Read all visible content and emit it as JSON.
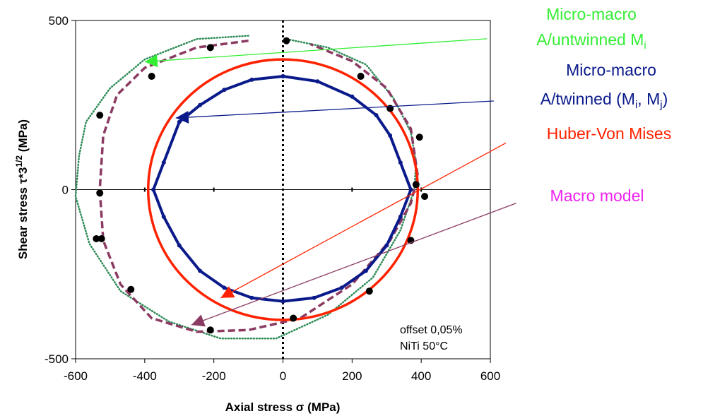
{
  "chart_data": {
    "type": "scatter",
    "xlabel": "Axial stress σ (MPa)",
    "ylabel": "Shear stress τ*3^(1/2) (MPa)",
    "ylabel_parts": {
      "main": "Shear stress τ*3",
      "sup": "1/2",
      "end": " (MPa)"
    },
    "xlim": [
      -600,
      600
    ],
    "ylim": [
      -500,
      500
    ],
    "xticks": [
      -600,
      -400,
      -200,
      0,
      200,
      400,
      600
    ],
    "yticks": [
      -500,
      0,
      500
    ],
    "notes": [
      "offset 0,05%",
      "NiTi 50°C"
    ],
    "experimental_points": {
      "name": "",
      "color": "#000000",
      "x": [
        10,
        -210,
        -380,
        -530,
        -530,
        -540,
        -525,
        -440,
        -210,
        30,
        250,
        370,
        385,
        410,
        395,
        310,
        225
      ],
      "y": [
        440,
        420,
        335,
        220,
        -10,
        -145,
        -145,
        -295,
        -415,
        -380,
        -300,
        -150,
        15,
        -20,
        155,
        240,
        335
      ]
    },
    "series": [
      {
        "name": "Micro-macro A/untwinned Mi",
        "color": "#2e8b57",
        "style": "dotted",
        "x": [
          -100,
          -250,
          -400,
          -500,
          -570,
          -590,
          -600,
          -560,
          -470,
          -330,
          -180,
          -20,
          130,
          260,
          340,
          380,
          385,
          370,
          320,
          240,
          130,
          10
        ],
        "y": [
          455,
          445,
          385,
          300,
          200,
          100,
          -20,
          -160,
          -300,
          -390,
          -440,
          -440,
          -370,
          -260,
          -120,
          0,
          80,
          170,
          270,
          370,
          420,
          445
        ]
      },
      {
        "name": "Macro model",
        "color": "#8b3a62",
        "style": "dashed",
        "x": [
          -100,
          -250,
          -400,
          -480,
          -520,
          -530,
          -520,
          -470,
          -380,
          -250,
          -100,
          50,
          200,
          310,
          370,
          390,
          370,
          300,
          200,
          80
        ],
        "y": [
          440,
          420,
          360,
          280,
          160,
          0,
          -150,
          -280,
          -380,
          -420,
          -415,
          -380,
          -280,
          -150,
          -40,
          40,
          180,
          300,
          380,
          430
        ]
      },
      {
        "name": "Huber-Von Mises",
        "color": "#ff2200",
        "style": "solid",
        "shape": "ellipse",
        "center": [
          0,
          0
        ],
        "rx": 390,
        "ry": 385
      },
      {
        "name": "Micro-macro A/twinned (Mi, Mj)",
        "color": "#0a1a8a",
        "style": "solid-markers",
        "x": [
          0,
          100,
          200,
          270,
          310,
          340,
          370,
          340,
          300,
          240,
          170,
          90,
          0,
          -90,
          -170,
          -240,
          -300,
          -345,
          -375,
          -345,
          -300,
          -240,
          -170,
          -90,
          0
        ],
        "y": [
          335,
          320,
          275,
          220,
          160,
          80,
          0,
          -80,
          -165,
          -240,
          -290,
          -320,
          -330,
          -320,
          -290,
          -240,
          -165,
          -80,
          0,
          80,
          200,
          250,
          295,
          325,
          335
        ]
      }
    ],
    "annotations": [
      {
        "label": "Micro-macro",
        "label2": "A/untwinned M",
        "sub": "i",
        "color": "#33ee33",
        "arrow_from": [
          590,
          446
        ],
        "arrow_to": [
          -400,
          378
        ]
      },
      {
        "label": "Micro-macro",
        "label2": "A/twinned (M",
        "sub": "i",
        "mid": ", M",
        "sub2": "j",
        "end": ")",
        "color": "#0a1a8a",
        "arrow_from": [
          610,
          262
        ],
        "arrow_to": [
          -310,
          212
        ]
      },
      {
        "label": "Huber-Von Mises",
        "color": "#ff2200",
        "arrow_from": [
          645,
          138
        ],
        "arrow_to": [
          -180,
          -320
        ]
      },
      {
        "label": "Macro model",
        "color": "#ee22ee",
        "line_color": "#8b3a62",
        "arrow_from": [
          675,
          -40
        ],
        "arrow_to": [
          -265,
          -400
        ]
      }
    ]
  }
}
